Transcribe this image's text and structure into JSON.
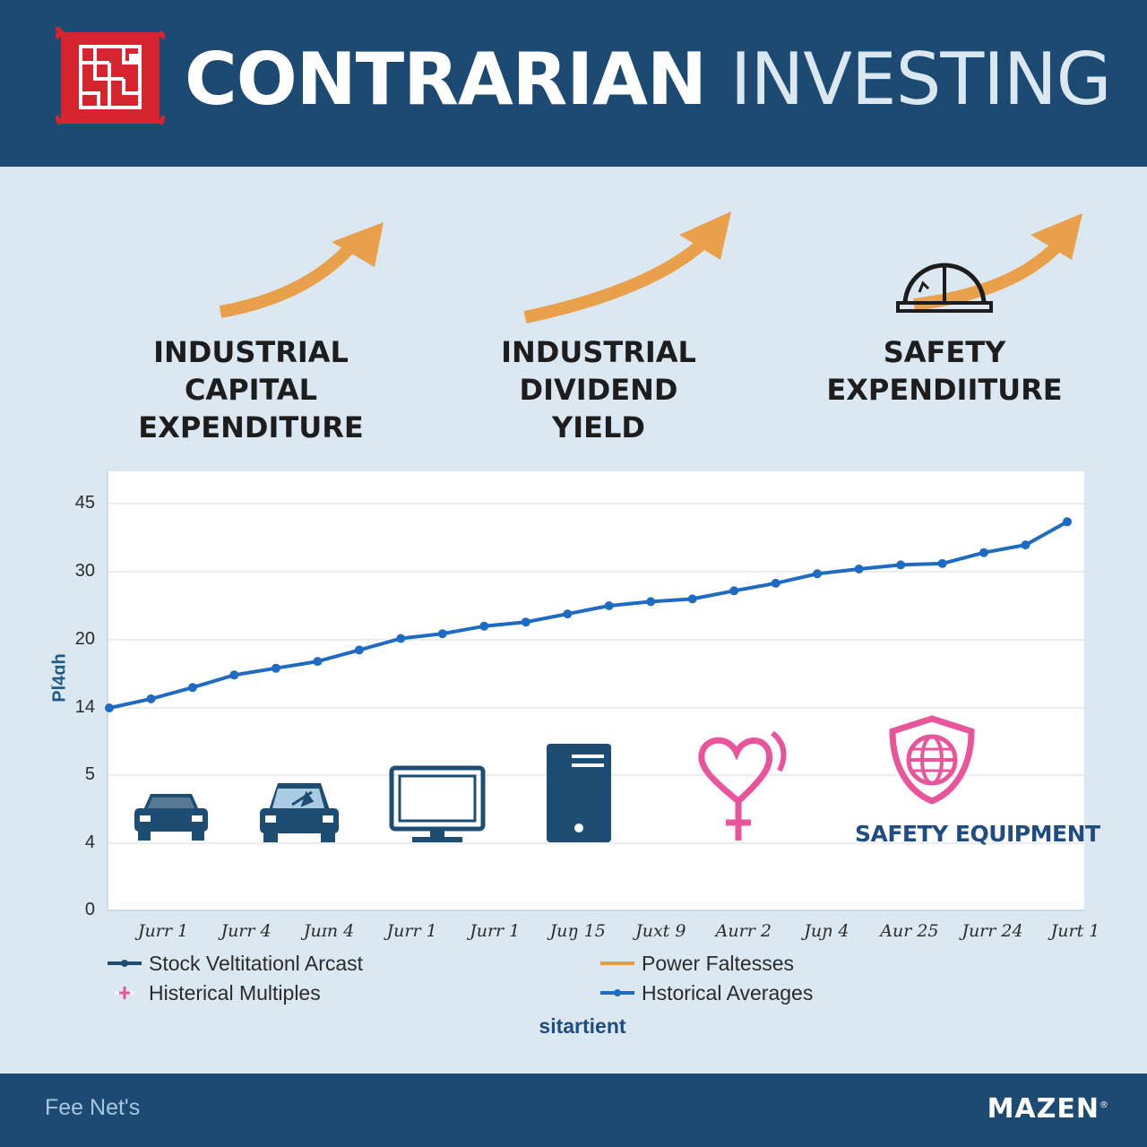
{
  "header": {
    "title_part1": "CONTRARIAN",
    "title_part2": "INVESTING",
    "logo_icon": "maze-stamp-icon",
    "background_color": "#1c4a72",
    "logo_color": "#d7252f"
  },
  "callouts": [
    {
      "lines": [
        "INDUSTRIAL",
        "CAPITAL",
        "EXPENDITURE"
      ],
      "icon": "up-trend-arrow-icon"
    },
    {
      "lines": [
        "INDUSTRIAL",
        "DIVIDEND",
        "YIELD"
      ],
      "icon": "up-trend-arrow-icon"
    },
    {
      "lines": [
        "SAFETY",
        "EXPENDIITURE"
      ],
      "icon": "hard-hat-icon"
    }
  ],
  "icons_row": [
    {
      "icon": "car-icon",
      "color": "#1e4d73"
    },
    {
      "icon": "car-windshield-icon",
      "color": "#1e4d73"
    },
    {
      "icon": "monitor-icon",
      "color": "#1e4d73"
    },
    {
      "icon": "server-tower-icon",
      "color": "#1e4d73"
    },
    {
      "icon": "heart-gender-icon",
      "color": "#e8559a"
    },
    {
      "icon": "shield-globe-icon",
      "color": "#e8559a",
      "label": "SAFETY EQUIPMENT"
    }
  ],
  "chart_data": {
    "type": "line",
    "ylabel": "Plׂ4ɑh",
    "xlabel": "sitartient",
    "y_ticks": [
      "45",
      "30",
      "20",
      "14",
      "5",
      "4",
      "0"
    ],
    "x_ticks": [
      "Jurr 1",
      "Jurr 4",
      "Juɪn 4",
      "Jurr 1",
      "Jurr 1",
      "Juŋ 15",
      "Juxt 9",
      "Aurr 2",
      "Juɲ 4",
      "Aur 25",
      "Jurr 24",
      "Jurt  1"
    ],
    "series": [
      {
        "name": "Hstorical Averages",
        "color": "#1f6bc1",
        "values": [
          14,
          14.8,
          15.8,
          16.9,
          17.5,
          18.1,
          19.1,
          20.2,
          20.9,
          22.0,
          22.6,
          23.8,
          25.0,
          25.6,
          26.0,
          27.2,
          28.3,
          29.7,
          30.6,
          31.5,
          31.8,
          34.2,
          35.9,
          41.0
        ]
      }
    ],
    "legend": [
      {
        "label": "Stock Veltitationl Arcast",
        "color": "#1e4d73",
        "style": "line-dot"
      },
      {
        "label": "Power Faltesses",
        "color": "#ef9a3a",
        "style": "line"
      },
      {
        "label": "Histerical Multiples",
        "color": "#e8559a",
        "style": "plus"
      },
      {
        "label": "Hstorical Averages",
        "color": "#1f6bc1",
        "style": "line-dot"
      }
    ],
    "grid": true,
    "legend_position": "bottom"
  },
  "footer": {
    "left_text": "Fee Net's",
    "brand": "MAZEN",
    "brand_mark": "®"
  }
}
